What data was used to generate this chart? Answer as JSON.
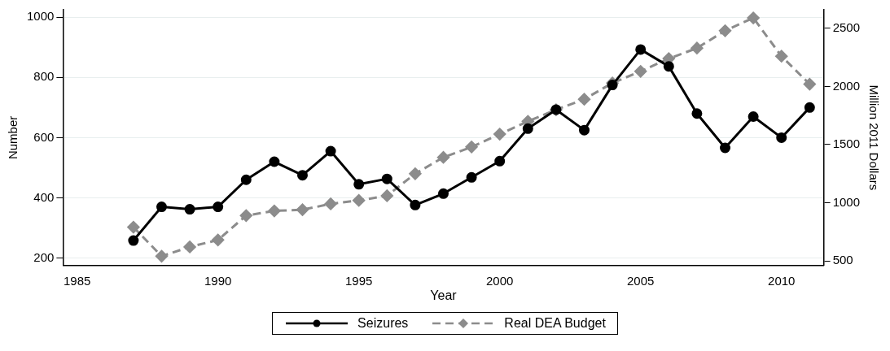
{
  "chart_data": {
    "type": "line",
    "xlabel": "Year",
    "ylabel": "Number",
    "y2label": "Million 2011 Dollars",
    "x": [
      1987,
      1988,
      1989,
      1990,
      1991,
      1992,
      1993,
      1994,
      1995,
      1996,
      1997,
      1998,
      1999,
      2000,
      2001,
      2002,
      2003,
      2004,
      2005,
      2006,
      2007,
      2008,
      2009,
      2010,
      2011
    ],
    "series": [
      {
        "name": "Seizures",
        "color": "#000000",
        "marker": "circle",
        "line_style": "solid",
        "values": [
          258,
          370,
          362,
          370,
          460,
          520,
          475,
          555,
          445,
          463,
          376,
          414,
          468,
          522,
          630,
          693,
          625,
          775,
          893,
          837,
          680,
          566,
          670,
          600,
          700
        ]
      },
      {
        "name": "Real DEA Budget",
        "color": "#8c8c8c",
        "marker": "diamond",
        "line_style": "dashed",
        "axis": "y2",
        "values": [
          790,
          540,
          620,
          680,
          890,
          930,
          940,
          990,
          1020,
          1060,
          1250,
          1390,
          1480,
          1590,
          1700,
          1800,
          1890,
          2030,
          2130,
          2240,
          2330,
          2480,
          2590,
          2260,
          2020
        ]
      }
    ],
    "xlim": [
      1984.5,
      2011.5
    ],
    "xticks": [
      1985,
      1990,
      1995,
      2000,
      2005,
      2010
    ],
    "ylim": [
      175,
      1025
    ],
    "yticks": [
      200,
      400,
      600,
      800,
      1000
    ],
    "y2lim": [
      460,
      2660
    ],
    "y2ticks": [
      500,
      1000,
      1500,
      2000,
      2500
    ],
    "grid": "y",
    "legend": "bottom"
  }
}
